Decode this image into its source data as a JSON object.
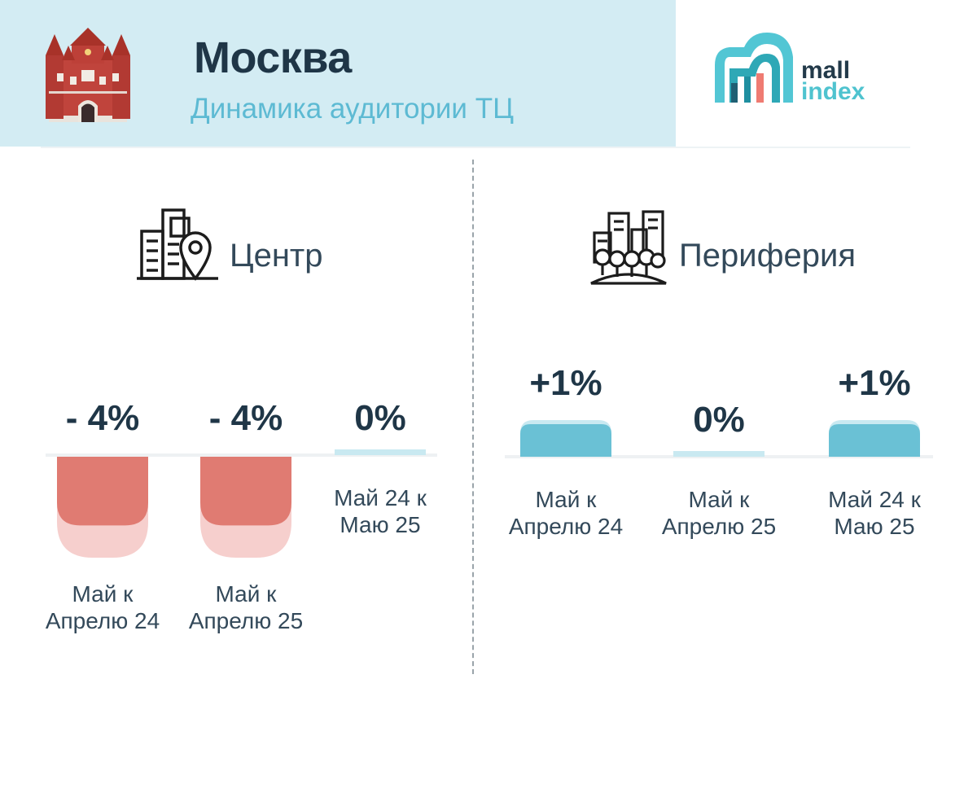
{
  "header": {
    "city": "Москва",
    "subtitle": "Динамика аудитории ТЦ",
    "logo_word_1": "mall",
    "logo_word_2": "index"
  },
  "colors": {
    "header_bg": "#d3ecf3",
    "negative": "#e07b72",
    "negative_light": "#f6cfcd",
    "positive": "#6ac1d5",
    "positive_light": "#c9e9f1",
    "accent_text": "#5dbad3"
  },
  "icons": {
    "header_left": "kremlin-tower-icon",
    "logo": "mall-index-logo-icon",
    "center": "city-buildings-pin-icon",
    "periphery": "suburb-buildings-trees-icon"
  },
  "chart_data": [
    {
      "type": "bar",
      "title": "Центр",
      "categories": [
        [
          "Май к",
          "Апрелю 24"
        ],
        [
          "Май к",
          "Апрелю 25"
        ],
        [
          "Май 24 к",
          "Маю 25"
        ]
      ],
      "values": [
        -4,
        -4,
        0
      ],
      "value_labels": [
        "- 4%",
        "- 4%",
        "0%"
      ],
      "xlabel": "",
      "ylabel": ""
    },
    {
      "type": "bar",
      "title": "Периферия",
      "categories": [
        [
          "Май к",
          "Апрелю 24"
        ],
        [
          "Май к",
          "Апрелю 25"
        ],
        [
          "Май 24 к",
          "Маю 25"
        ]
      ],
      "values": [
        1,
        0,
        1
      ],
      "value_labels": [
        "+1%",
        "0%",
        "+1%"
      ],
      "xlabel": "",
      "ylabel": ""
    }
  ]
}
